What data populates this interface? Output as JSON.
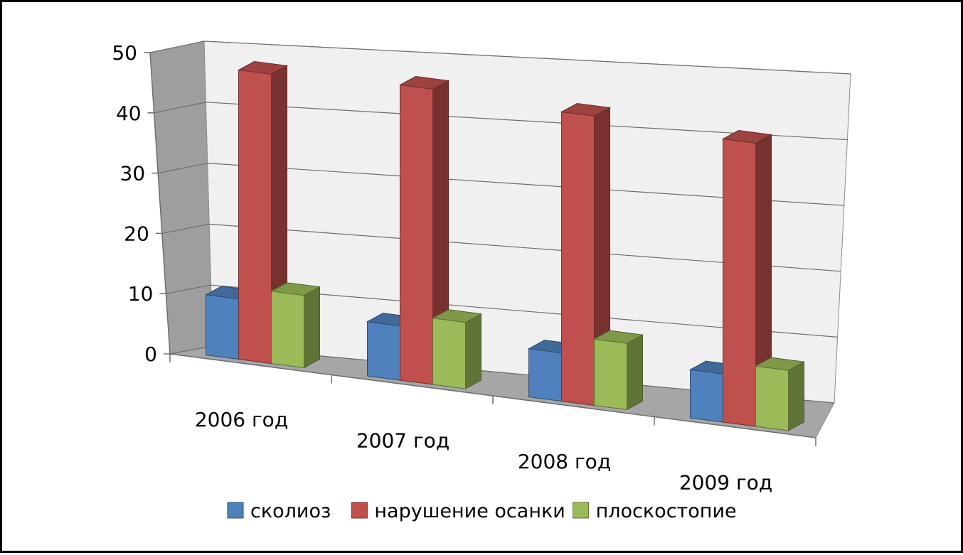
{
  "chart_data": {
    "type": "bar",
    "variant": "3d-clustered-column",
    "categories": [
      "2006 год",
      "2007 год",
      "2008 год",
      "2009 год"
    ],
    "series": [
      {
        "name": "сколиоз",
        "values": [
          10,
          9,
          8,
          8
        ],
        "color": "#4F81BD"
      },
      {
        "name": "нарушение осанки",
        "values": [
          48,
          49,
          48,
          47
        ],
        "color": "#C0504D"
      },
      {
        "name": "плоскостопие",
        "values": [
          12,
          11,
          11,
          10
        ],
        "color": "#9BBB59"
      }
    ],
    "ylim": [
      0,
      50
    ],
    "yticks": [
      0,
      10,
      20,
      30,
      40,
      50
    ],
    "title": "",
    "xlabel": "",
    "ylabel": "",
    "grid": true,
    "legend_position": "bottom"
  }
}
